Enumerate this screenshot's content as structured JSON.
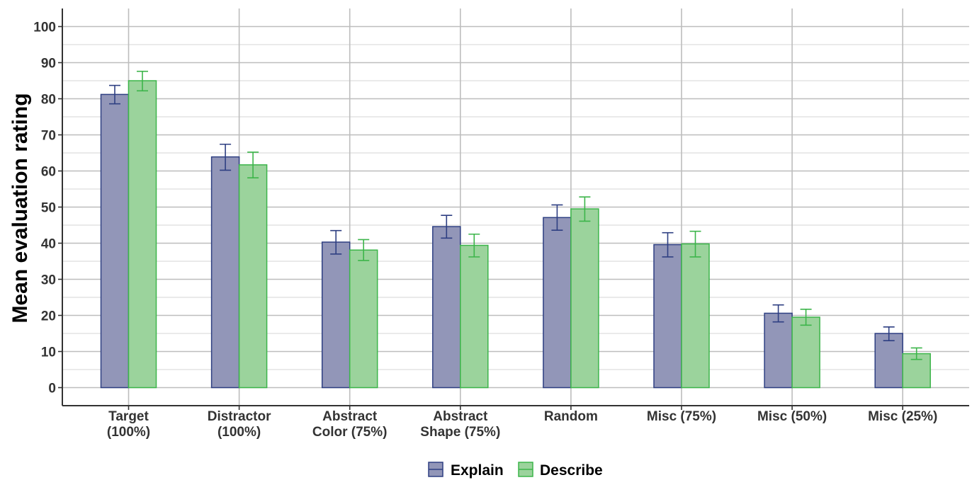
{
  "chart_data": {
    "type": "bar",
    "ylabel": "Mean evaluation rating",
    "xlabel": "",
    "ylim": [
      -5,
      105
    ],
    "yticks": [
      0,
      10,
      20,
      30,
      40,
      50,
      60,
      70,
      80,
      90,
      100
    ],
    "grid": true,
    "legend_position": "bottom",
    "categories": [
      [
        "Target",
        "(100%)"
      ],
      [
        "Distractor",
        "(100%)"
      ],
      [
        "Abstract",
        "Color (75%)"
      ],
      [
        "Abstract",
        "Shape (75%)"
      ],
      [
        "Random"
      ],
      [
        "Misc (75%)"
      ],
      [
        "Misc (50%)"
      ],
      [
        "Misc (25%)"
      ]
    ],
    "series": [
      {
        "name": "Explain",
        "fill": "#9296b8",
        "stroke": "#2e3f82",
        "values": [
          81.2,
          63.9,
          40.3,
          44.6,
          47.1,
          39.6,
          20.6,
          15.0
        ],
        "error_low": [
          78.6,
          60.2,
          37.0,
          41.4,
          43.6,
          36.2,
          18.2,
          13.0
        ],
        "error_high": [
          83.7,
          67.4,
          43.5,
          47.7,
          50.6,
          42.9,
          22.9,
          16.8
        ]
      },
      {
        "name": "Describe",
        "fill": "#9bd39c",
        "stroke": "#3cb54a",
        "values": [
          85.0,
          61.7,
          38.1,
          39.4,
          49.5,
          39.8,
          19.5,
          9.4
        ],
        "error_low": [
          82.2,
          58.1,
          35.2,
          36.2,
          46.1,
          36.2,
          17.3,
          7.8
        ],
        "error_high": [
          87.6,
          65.2,
          41.0,
          42.5,
          52.8,
          43.3,
          21.7,
          11.0
        ]
      }
    ]
  }
}
